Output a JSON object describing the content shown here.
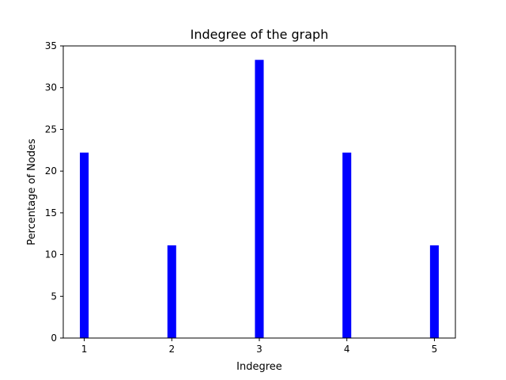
{
  "chart_data": {
    "type": "bar",
    "title": "Indegree of the graph",
    "xlabel": "Indegree",
    "ylabel": "Percentage of Nodes",
    "x": [
      1,
      2,
      3,
      4,
      5
    ],
    "values": [
      22.22,
      11.11,
      33.33,
      22.22,
      11.11
    ],
    "xlim": [
      0.76,
      5.24
    ],
    "ylim": [
      0,
      35
    ],
    "xticks": [
      1,
      2,
      3,
      4,
      5
    ],
    "yticks": [
      0,
      5,
      10,
      15,
      20,
      25,
      30,
      35
    ],
    "bar_color": "#0000ff",
    "grid": false,
    "legend": "none"
  }
}
